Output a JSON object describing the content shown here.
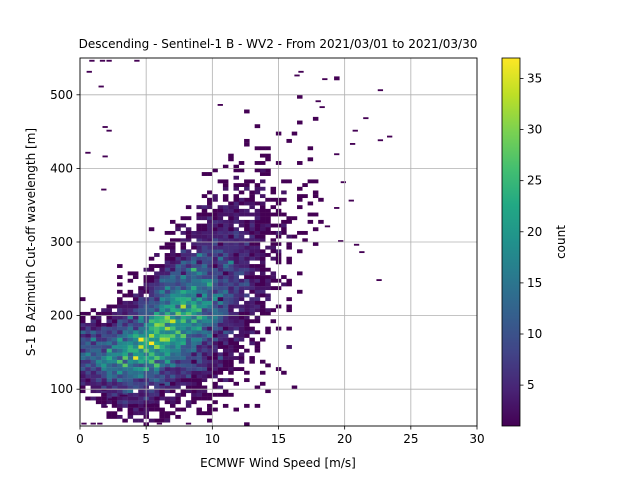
{
  "chart_data": {
    "type": "heatmap",
    "title": "Descending - Sentinel-1 B - WV2 - From 2021/03/01 to 2021/03/30",
    "xlabel": "ECMWF Wind Speed [m/s]",
    "ylabel": "S-1 B Azimuth Cut-off wavelength [m]",
    "xlim": [
      0,
      30
    ],
    "ylim": [
      50,
      550
    ],
    "xticks": [
      0,
      5,
      10,
      15,
      20,
      25,
      30
    ],
    "yticks": [
      100,
      200,
      300,
      400,
      500
    ],
    "grid": true,
    "colorbar": {
      "label": "count",
      "colormap": "viridis",
      "min": 1,
      "max": 37,
      "ticks": [
        5,
        10,
        15,
        20,
        25,
        30,
        35
      ]
    },
    "density_ridge": [
      {
        "x": 1,
        "y": 150,
        "count": 4
      },
      {
        "x": 2,
        "y": 140,
        "count": 8
      },
      {
        "x": 3,
        "y": 145,
        "count": 12
      },
      {
        "x": 4,
        "y": 152,
        "count": 18
      },
      {
        "x": 5,
        "y": 160,
        "count": 25
      },
      {
        "x": 6,
        "y": 172,
        "count": 33
      },
      {
        "x": 7,
        "y": 188,
        "count": 30
      },
      {
        "x": 8,
        "y": 203,
        "count": 27
      },
      {
        "x": 9,
        "y": 212,
        "count": 22
      },
      {
        "x": 10,
        "y": 225,
        "count": 17
      },
      {
        "x": 11,
        "y": 240,
        "count": 12
      },
      {
        "x": 12,
        "y": 255,
        "count": 9
      },
      {
        "x": 13,
        "y": 272,
        "count": 6
      },
      {
        "x": 14,
        "y": 288,
        "count": 4
      },
      {
        "x": 15,
        "y": 300,
        "count": 3
      },
      {
        "x": 17,
        "y": 320,
        "count": 2
      },
      {
        "x": 19,
        "y": 340,
        "count": 1
      }
    ],
    "outlier_cells": [
      {
        "x": 0.7,
        "y": 545
      },
      {
        "x": 1.5,
        "y": 545
      },
      {
        "x": 2.0,
        "y": 545
      },
      {
        "x": 4.1,
        "y": 545
      },
      {
        "x": 0.5,
        "y": 530
      },
      {
        "x": 1.4,
        "y": 510
      },
      {
        "x": 1.7,
        "y": 455
      },
      {
        "x": 2.0,
        "y": 450
      },
      {
        "x": 0.4,
        "y": 420
      },
      {
        "x": 1.7,
        "y": 415
      },
      {
        "x": 1.6,
        "y": 370
      },
      {
        "x": 16.5,
        "y": 530
      },
      {
        "x": 16.2,
        "y": 525
      },
      {
        "x": 18.3,
        "y": 520
      },
      {
        "x": 22.5,
        "y": 505
      },
      {
        "x": 10.4,
        "y": 485
      },
      {
        "x": 17.8,
        "y": 490
      },
      {
        "x": 18.1,
        "y": 482
      },
      {
        "x": 21.4,
        "y": 467
      },
      {
        "x": 20.6,
        "y": 450
      },
      {
        "x": 23.2,
        "y": 442
      },
      {
        "x": 22.5,
        "y": 437
      },
      {
        "x": 20.4,
        "y": 432
      },
      {
        "x": 19.2,
        "y": 418
      },
      {
        "x": 19.7,
        "y": 380
      },
      {
        "x": 20.3,
        "y": 355
      },
      {
        "x": 19.2,
        "y": 345
      },
      {
        "x": 20.7,
        "y": 295
      },
      {
        "x": 22.4,
        "y": 247
      },
      {
        "x": 21.1,
        "y": 285
      },
      {
        "x": 19.5,
        "y": 300
      },
      {
        "x": 18.5,
        "y": 320
      },
      {
        "x": 0.1,
        "y": 52
      },
      {
        "x": 0.8,
        "y": 52
      },
      {
        "x": 1.3,
        "y": 52
      },
      {
        "x": 5.8,
        "y": 52
      },
      {
        "x": 8.0,
        "y": 52
      },
      {
        "x": 1.7,
        "y": 75
      },
      {
        "x": 1.6,
        "y": 98
      },
      {
        "x": 3.0,
        "y": 90
      },
      {
        "x": 3.2,
        "y": 90
      },
      {
        "x": 2.1,
        "y": 85
      },
      {
        "x": 6.0,
        "y": 105
      },
      {
        "x": 5.4,
        "y": 78
      }
    ]
  }
}
